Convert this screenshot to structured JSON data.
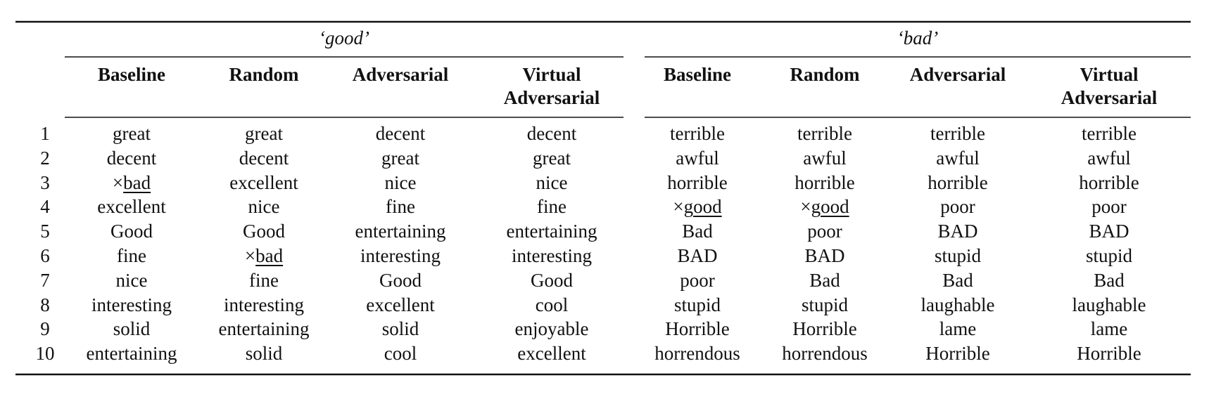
{
  "table": {
    "groups": [
      "‘good’",
      "‘bad’"
    ],
    "columns": [
      "Baseline",
      "Random",
      "Adversarial",
      "Virtual Adversarial",
      "Baseline",
      "Random",
      "Adversarial",
      "Virtual Adversarial"
    ],
    "ranks": [
      1,
      2,
      3,
      4,
      5,
      6,
      7,
      8,
      9,
      10
    ],
    "rows": [
      [
        "great",
        "great",
        "decent",
        "decent",
        "terrible",
        "terrible",
        "terrible",
        "terrible"
      ],
      [
        "decent",
        "decent",
        "great",
        "great",
        "awful",
        "awful",
        "awful",
        "awful"
      ],
      [
        {
          "mark": "×",
          "word": "bad"
        },
        "excellent",
        "nice",
        "nice",
        "horrible",
        "horrible",
        "horrible",
        "horrible"
      ],
      [
        "excellent",
        "nice",
        "fine",
        "fine",
        {
          "mark": "×",
          "word": "good"
        },
        {
          "mark": "×",
          "word": "good"
        },
        "poor",
        "poor"
      ],
      [
        "Good",
        "Good",
        "entertaining",
        "entertaining",
        "Bad",
        "poor",
        "BAD",
        "BAD"
      ],
      [
        "fine",
        {
          "mark": "×",
          "word": "bad"
        },
        "interesting",
        "interesting",
        "BAD",
        "BAD",
        "stupid",
        "stupid"
      ],
      [
        "nice",
        "fine",
        "Good",
        "Good",
        "poor",
        "Bad",
        "Bad",
        "Bad"
      ],
      [
        "interesting",
        "interesting",
        "excellent",
        "cool",
        "stupid",
        "stupid",
        "laughable",
        "laughable"
      ],
      [
        "solid",
        "entertaining",
        "solid",
        "enjoyable",
        "Horrible",
        "Horrible",
        "lame",
        "lame"
      ],
      [
        "entertaining",
        "solid",
        "cool",
        "excellent",
        "horrendous",
        "horrendous",
        "Horrible",
        "Horrible"
      ]
    ]
  }
}
